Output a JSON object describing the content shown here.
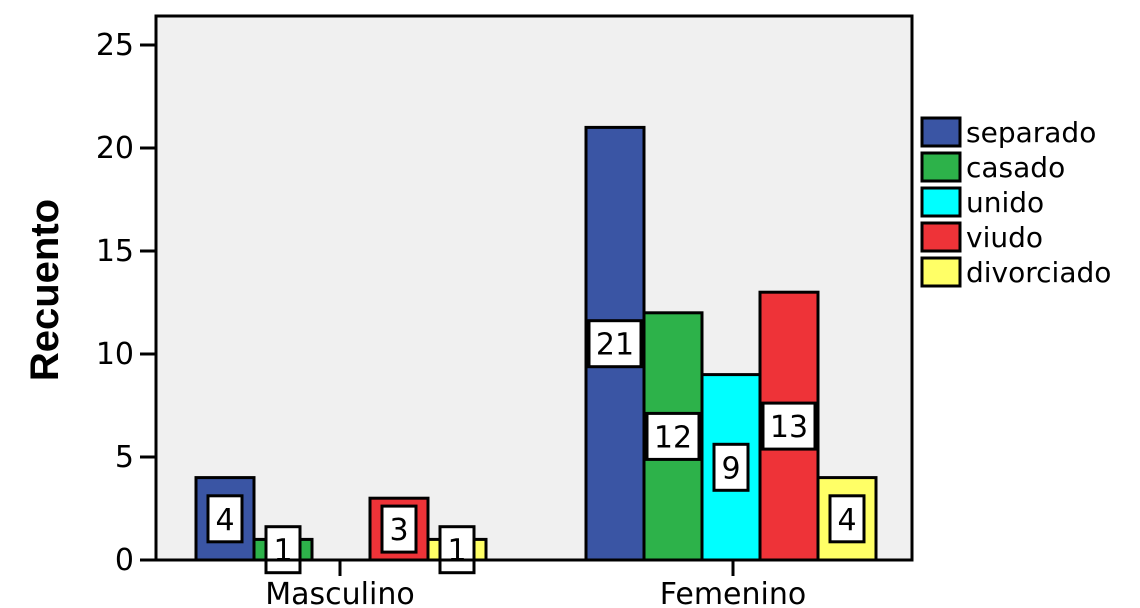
{
  "chart_data": {
    "type": "bar",
    "ylabel": "Recuento",
    "xlabel": "",
    "ylim": [
      0,
      27
    ],
    "yticks": [
      0,
      5,
      10,
      15,
      20,
      25
    ],
    "categories": [
      "Masculino",
      "Femenino"
    ],
    "series": [
      {
        "name": "separado",
        "color": "#3a55a4",
        "values": [
          4,
          21
        ]
      },
      {
        "name": "casado",
        "color": "#2db24a",
        "values": [
          1,
          12
        ]
      },
      {
        "name": "unido",
        "color": "#00ffff",
        "values": [
          0,
          9
        ]
      },
      {
        "name": "viudo",
        "color": "#ee3338",
        "values": [
          3,
          13
        ]
      },
      {
        "name": "divorciado",
        "color": "#ffff66",
        "values": [
          1,
          4
        ]
      }
    ],
    "legend_position": "right",
    "grid": false,
    "plot_background": "#f0f0f0"
  }
}
